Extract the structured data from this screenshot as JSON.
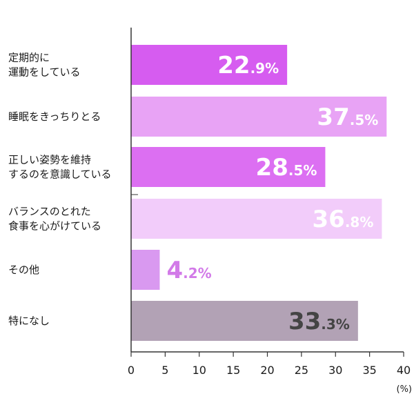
{
  "chart_data": {
    "type": "bar",
    "orientation": "horizontal",
    "categories": [
      [
        "定期的に",
        "運動をしている"
      ],
      [
        "睡眠をきっちりとる"
      ],
      [
        "正しい姿勢を維持",
        "するのを意識している"
      ],
      [
        "バランスのとれた",
        "食事を心がけている"
      ],
      [
        "その他"
      ],
      [
        "特になし"
      ]
    ],
    "values": [
      22.9,
      37.5,
      28.5,
      36.8,
      4.2,
      33.3
    ],
    "value_labels": [
      {
        "main": "22",
        "sub": ".9%"
      },
      {
        "main": "37",
        "sub": ".5%"
      },
      {
        "main": "28",
        "sub": ".5%"
      },
      {
        "main": "36",
        "sub": ".8%"
      },
      {
        "main": "4",
        "sub": ".2%"
      },
      {
        "main": "33",
        "sub": ".3%"
      }
    ],
    "bar_colors": [
      "#d65cf0",
      "#e8a3f5",
      "#dc6ff2",
      "#f2ccfa",
      "#d999f0",
      "#b2a2b5"
    ],
    "label_colors": [
      "#ffffff",
      "#ffffff",
      "#ffffff",
      "#ffffff",
      "#d27ae8",
      "#444444"
    ],
    "label_placement": [
      "inside",
      "inside",
      "inside",
      "inside",
      "outside",
      "inside"
    ],
    "xlim": [
      0,
      40
    ],
    "xticks": [
      0,
      5,
      10,
      15,
      20,
      25,
      30,
      35,
      40
    ],
    "unit_label": "(%)",
    "grid": false,
    "axis_color": "#333333"
  }
}
